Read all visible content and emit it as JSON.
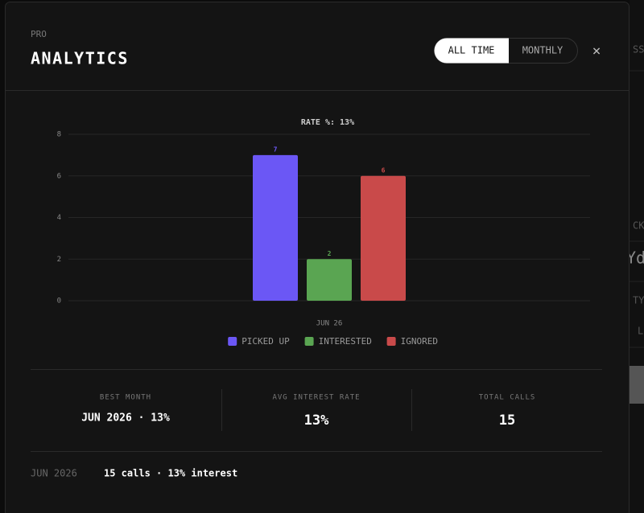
{
  "background": {
    "fragments": [
      "SS",
      "CK",
      "Yd",
      "TY",
      "L"
    ]
  },
  "header": {
    "eyebrow": "PRO",
    "title": "ANALYTICS",
    "toggle": [
      "ALL TIME",
      "MONTHLY"
    ],
    "close": "×"
  },
  "chart_data": {
    "type": "bar",
    "title": "RATE %: 13%",
    "categories": [
      "JUN 26"
    ],
    "series": [
      {
        "name": "PICKED UP",
        "color": "#6b57f5",
        "values": [
          7
        ]
      },
      {
        "name": "INTERESTED",
        "color": "#5aa552",
        "values": [
          2
        ]
      },
      {
        "name": "IGNORED",
        "color": "#c94a4a",
        "values": [
          6
        ]
      }
    ],
    "ylim": [
      0,
      8
    ],
    "yticks": [
      0,
      2,
      4,
      6,
      8
    ],
    "grid": true,
    "legend": "bottom"
  },
  "stats": [
    {
      "label": "BEST MONTH",
      "value": "JUN 2026 · 13%"
    },
    {
      "label": "AVG INTEREST RATE",
      "value": "13%"
    },
    {
      "label": "TOTAL CALLS",
      "value": "15"
    }
  ],
  "rows": [
    {
      "month": "JUN 2026",
      "summary": "15 calls · 13% interest"
    }
  ]
}
